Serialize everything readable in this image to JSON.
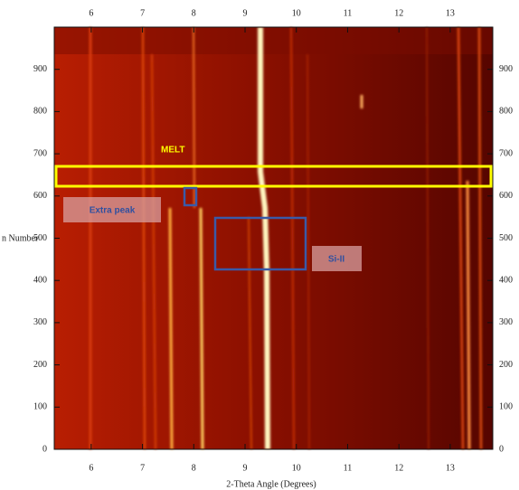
{
  "chart_data": {
    "type": "heatmap",
    "x_label": "2-Theta Angle (Degrees)",
    "y_label": "n Number",
    "xlim": [
      5.28,
      13.83
    ],
    "ylim": [
      0,
      1000
    ],
    "xticks": [
      6,
      7,
      8,
      9,
      10,
      11,
      12,
      13
    ],
    "yticks": [
      0,
      100,
      200,
      300,
      400,
      500,
      600,
      700,
      800,
      900
    ],
    "annotations": [
      "MELT",
      "Extra peak",
      "Si-II"
    ]
  }
}
